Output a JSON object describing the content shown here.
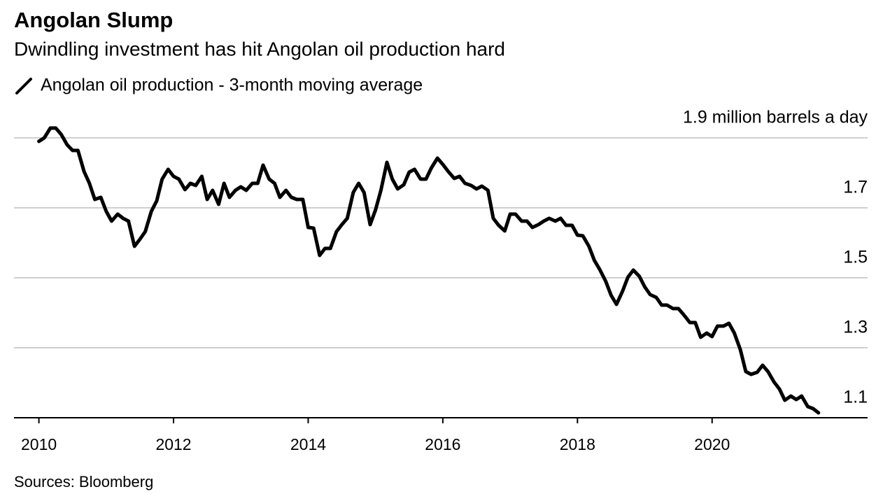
{
  "chart_data": {
    "type": "line",
    "title": "Angolan Slump",
    "subtitle": "Dwindling investment has hit Angolan oil production hard",
    "source": "Sources: Bloomberg",
    "x": [
      2010,
      2010.08,
      2010.17,
      2010.25,
      2010.33,
      2010.42,
      2010.5,
      2010.58,
      2010.67,
      2010.75,
      2010.83,
      2010.92,
      2011,
      2011.08,
      2011.17,
      2011.25,
      2011.33,
      2011.42,
      2011.5,
      2011.58,
      2011.67,
      2011.75,
      2011.83,
      2011.92,
      2012,
      2012.08,
      2012.17,
      2012.25,
      2012.33,
      2012.42,
      2012.5,
      2012.58,
      2012.67,
      2012.75,
      2012.83,
      2012.92,
      2013,
      2013.08,
      2013.17,
      2013.25,
      2013.33,
      2013.42,
      2013.5,
      2013.58,
      2013.67,
      2013.75,
      2013.83,
      2013.92,
      2014,
      2014.08,
      2014.17,
      2014.25,
      2014.33,
      2014.42,
      2014.5,
      2014.58,
      2014.67,
      2014.75,
      2014.83,
      2014.92,
      2015,
      2015.08,
      2015.17,
      2015.25,
      2015.33,
      2015.42,
      2015.5,
      2015.58,
      2015.67,
      2015.75,
      2015.83,
      2015.92,
      2016,
      2016.08,
      2016.17,
      2016.25,
      2016.33,
      2016.42,
      2016.5,
      2016.58,
      2016.67,
      2016.75,
      2016.83,
      2016.92,
      2017,
      2017.08,
      2017.17,
      2017.25,
      2017.33,
      2017.42,
      2017.5,
      2017.58,
      2017.67,
      2017.75,
      2017.83,
      2017.92,
      2018,
      2018.08,
      2018.17,
      2018.25,
      2018.33,
      2018.42,
      2018.5,
      2018.58,
      2018.67,
      2018.75,
      2018.83,
      2018.92,
      2019,
      2019.08,
      2019.17,
      2019.25,
      2019.33,
      2019.42,
      2019.5,
      2019.58,
      2019.67,
      2019.75,
      2019.83,
      2019.92,
      2020,
      2020.08,
      2020.17,
      2020.25,
      2020.33,
      2020.42,
      2020.5,
      2020.58,
      2020.67,
      2020.75,
      2020.83,
      2020.92,
      2021,
      2021.08,
      2021.17,
      2021.25,
      2021.33,
      2021.42,
      2021.5,
      2021.58
    ],
    "series": [
      {
        "name": "Angolan oil production - 3-month moving average",
        "color": "#000000",
        "values": [
          1.89,
          1.9,
          1.928,
          1.928,
          1.91,
          1.88,
          1.864,
          1.864,
          1.804,
          1.77,
          1.724,
          1.73,
          1.69,
          1.662,
          1.682,
          1.67,
          1.662,
          1.59,
          1.61,
          1.632,
          1.69,
          1.72,
          1.782,
          1.81,
          1.79,
          1.782,
          1.752,
          1.77,
          1.764,
          1.79,
          1.724,
          1.75,
          1.71,
          1.77,
          1.73,
          1.75,
          1.76,
          1.75,
          1.77,
          1.77,
          1.822,
          1.782,
          1.77,
          1.73,
          1.75,
          1.73,
          1.724,
          1.724,
          1.644,
          1.642,
          1.564,
          1.584,
          1.584,
          1.632,
          1.652,
          1.67,
          1.744,
          1.77,
          1.744,
          1.652,
          1.694,
          1.75,
          1.83,
          1.782,
          1.754,
          1.766,
          1.802,
          1.81,
          1.782,
          1.782,
          1.814,
          1.842,
          1.824,
          1.804,
          1.784,
          1.79,
          1.77,
          1.764,
          1.754,
          1.762,
          1.75,
          1.67,
          1.65,
          1.634,
          1.682,
          1.682,
          1.662,
          1.662,
          1.644,
          1.652,
          1.662,
          1.67,
          1.662,
          1.67,
          1.65,
          1.65,
          1.622,
          1.62,
          1.59,
          1.55,
          1.524,
          1.49,
          1.45,
          1.424,
          1.462,
          1.502,
          1.522,
          1.504,
          1.474,
          1.452,
          1.444,
          1.422,
          1.422,
          1.412,
          1.412,
          1.394,
          1.372,
          1.372,
          1.33,
          1.342,
          1.332,
          1.362,
          1.362,
          1.37,
          1.342,
          1.294,
          1.232,
          1.224,
          1.23,
          1.25,
          1.232,
          1.202,
          1.182,
          1.15,
          1.162,
          1.152,
          1.162,
          1.132,
          1.126,
          1.114
        ]
      }
    ],
    "xlim": [
      2009.63,
      2022.31
    ],
    "xticks": [
      2010,
      2012,
      2014,
      2016,
      2018,
      2020
    ],
    "ylim": [
      1.1,
      1.9
    ],
    "yticks": [
      1.1,
      1.3,
      1.5,
      1.7,
      {
        "value": 1.9,
        "label": "1.9 million barrels a day"
      }
    ],
    "grid": true
  }
}
